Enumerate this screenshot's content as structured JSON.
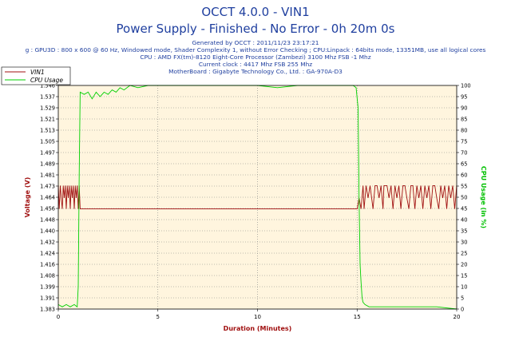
{
  "header": {
    "title": "OCCT 4.0.0 - VIN1",
    "subtitle": "Power Supply - Finished - No Error - 0h 20m 0s",
    "info_lines": [
      "Generated by OCCT : 2011/11/23 23:17:21",
      "g : GPU3D : 800 x 600 @ 60 Hz, Windowed mode, Shader Complexity 1, without Error Checking ; CPU:Linpack : 64bits mode, 13351MB, use all logical cores",
      "CPU : AMD FX(tm)-8120 Eight-Core Processor (Zambezi) 3100 Mhz FSB -1 Mhz",
      "Current clock : 4417 Mhz FSB 255 Mhz",
      "MotherBoard : Gigabyte Technology Co., Ltd. : GA-970A-D3"
    ]
  },
  "colors": {
    "title": "#1f3f9f",
    "plot_bg": "#fff5de",
    "vin1": "#a01010",
    "cpu": "#00d000",
    "grid": "#808080",
    "left_axis_title": "#a01010",
    "right_axis_title": "#00c000"
  },
  "chart_data": {
    "type": "line",
    "xlabel": "Duration (Minutes)",
    "ylabel": "Voltage (V)",
    "ylabel_right": "CPU Usage (in %)",
    "xlim": [
      0,
      20
    ],
    "ylim": [
      1.383,
      1.546
    ],
    "ylim_right": [
      0,
      100
    ],
    "x_ticks": [
      0,
      5,
      10,
      15,
      20
    ],
    "y_ticks": [
      "1.383",
      "1.391",
      "1.399",
      "1.408",
      "1.416",
      "1.424",
      "1.432",
      "1.440",
      "1.448",
      "1.456",
      "1.464",
      "1.473",
      "1.481",
      "1.489",
      "1.497",
      "1.505",
      "1.513",
      "1.521",
      "1.529",
      "1.537",
      "1.546"
    ],
    "y_ticks_right": [
      0,
      5,
      10,
      15,
      20,
      25,
      30,
      35,
      40,
      45,
      50,
      55,
      60,
      65,
      70,
      75,
      80,
      85,
      90,
      95,
      100
    ],
    "grid": true,
    "legend_position": "top-left",
    "series": [
      {
        "name": "VIN1",
        "axis": "left",
        "x": [
          0,
          0.05,
          0.1,
          0.15,
          0.2,
          0.25,
          0.3,
          0.35,
          0.4,
          0.45,
          0.5,
          0.55,
          0.6,
          0.65,
          0.7,
          0.75,
          0.8,
          0.85,
          0.9,
          0.95,
          1.0,
          1.05,
          1.1,
          1.2,
          2,
          3,
          4,
          5,
          6,
          7,
          8,
          9,
          10,
          11,
          12,
          13,
          14,
          15.0,
          15.1,
          15.2,
          15.3,
          15.35,
          15.45,
          15.55,
          15.65,
          15.8,
          15.9,
          16.0,
          16.1,
          16.2,
          16.3,
          16.35,
          16.5,
          16.6,
          16.7,
          16.8,
          16.9,
          17.0,
          17.1,
          17.2,
          17.3,
          17.4,
          17.5,
          17.6,
          17.7,
          17.8,
          17.9,
          18.0,
          18.1,
          18.2,
          18.3,
          18.4,
          18.5,
          18.6,
          18.7,
          18.8,
          18.9,
          19.0,
          19.1,
          19.2,
          19.3,
          19.4,
          19.5,
          19.6,
          19.7,
          19.8,
          19.9,
          20.0
        ],
        "values": [
          1.473,
          1.456,
          1.473,
          1.464,
          1.456,
          1.473,
          1.464,
          1.473,
          1.456,
          1.473,
          1.464,
          1.473,
          1.456,
          1.473,
          1.464,
          1.473,
          1.456,
          1.473,
          1.464,
          1.473,
          1.456,
          1.473,
          1.456,
          1.456,
          1.456,
          1.456,
          1.456,
          1.456,
          1.456,
          1.456,
          1.456,
          1.456,
          1.456,
          1.456,
          1.456,
          1.456,
          1.456,
          1.456,
          1.464,
          1.456,
          1.473,
          1.456,
          1.473,
          1.464,
          1.473,
          1.456,
          1.473,
          1.473,
          1.464,
          1.473,
          1.456,
          1.473,
          1.473,
          1.464,
          1.473,
          1.456,
          1.473,
          1.464,
          1.473,
          1.456,
          1.473,
          1.473,
          1.464,
          1.456,
          1.473,
          1.473,
          1.456,
          1.473,
          1.464,
          1.473,
          1.456,
          1.473,
          1.464,
          1.473,
          1.456,
          1.473,
          1.473,
          1.464,
          1.456,
          1.473,
          1.464,
          1.473,
          1.456,
          1.473,
          1.464,
          1.473,
          1.456,
          1.473
        ]
      },
      {
        "name": "CPU Usage",
        "axis": "right",
        "x": [
          0,
          0.2,
          0.4,
          0.6,
          0.8,
          0.95,
          1.0,
          1.05,
          1.1,
          1.3,
          1.5,
          1.7,
          1.9,
          2.1,
          2.3,
          2.5,
          2.7,
          2.9,
          3.1,
          3.3,
          3.6,
          4.0,
          4.5,
          5,
          6,
          7,
          8,
          9,
          10,
          11,
          12,
          13,
          14,
          14.8,
          14.95,
          15.05,
          15.1,
          15.15,
          15.2,
          15.25,
          15.3,
          15.4,
          15.6,
          16,
          17,
          18,
          19,
          20
        ],
        "values": [
          2,
          1,
          2,
          1,
          2,
          1,
          10,
          60,
          97,
          96,
          97,
          94,
          97,
          95,
          97,
          96,
          98,
          97,
          99,
          98,
          100,
          99,
          100,
          100,
          100,
          100,
          100,
          100,
          100,
          99,
          100,
          100,
          100,
          100,
          99,
          90,
          50,
          20,
          12,
          5,
          3,
          2,
          1,
          1,
          1,
          1,
          1,
          0
        ]
      }
    ]
  }
}
